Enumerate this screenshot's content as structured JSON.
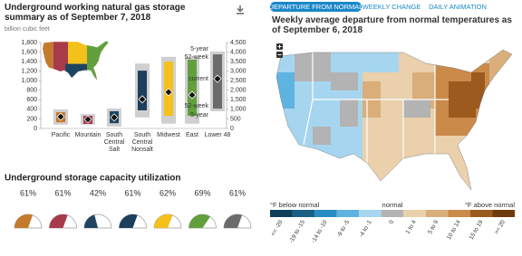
{
  "chart_data": [
    {
      "type": "range",
      "title": "Underground working natural gas storage summary as of September 7, 2018",
      "subtitle": "billion cubic feet",
      "categories": [
        "Pacific",
        "Mountain",
        "South Central Salt",
        "South Central Nonsalt",
        "Midwest",
        "East",
        "Lower 48"
      ],
      "axis": [
        "y",
        "y",
        "y",
        "y",
        "y",
        "y",
        "y2"
      ],
      "series": [
        {
          "name": "5-year",
          "color": "#cfcfcf",
          "low": [
            80,
            80,
            40,
            230,
            100,
            100,
            900
          ],
          "high": [
            400,
            300,
            420,
            1360,
            1500,
            1500,
            4030
          ]
        },
        {
          "name": "52-week",
          "colors": [
            "#c47a2c",
            "#a83a4a",
            "#1f4461",
            "#1d3f5e",
            "#f4c01a",
            "#62a03e",
            "#6b6b6b"
          ],
          "low": [
            130,
            95,
            110,
            380,
            265,
            265,
            1040
          ],
          "high": [
            340,
            265,
            360,
            1210,
            1400,
            1440,
            3880
          ]
        },
        {
          "name": "current",
          "values": [
            245,
            190,
            230,
            610,
            760,
            700,
            2600
          ]
        }
      ],
      "low_labels": [
        "52-week",
        "5-year"
      ],
      "ylim": [
        0,
        1800
      ],
      "yticks": [
        0,
        200,
        400,
        600,
        800,
        {
          "value": 1000,
          "label": "1,000"
        },
        {
          "value": 1200,
          "label": "1,200"
        },
        {
          "value": 1400,
          "label": "1,400"
        },
        {
          "value": 1600,
          "label": "1,600"
        },
        {
          "value": 1800,
          "label": "1,800"
        }
      ],
      "y2lim": [
        0,
        4500
      ],
      "y2ticks": [
        0,
        500,
        {
          "value": 1000,
          "label": "1,000"
        },
        {
          "value": 1500,
          "label": "1,500"
        },
        {
          "value": 2000,
          "label": "2,000"
        },
        {
          "value": 2500,
          "label": "2,500"
        },
        {
          "value": 3000,
          "label": "3,000"
        },
        {
          "value": 3500,
          "label": "3,500"
        },
        {
          "value": 4000,
          "label": "4,000"
        },
        {
          "value": 4500,
          "label": "4,500"
        }
      ]
    },
    {
      "type": "gauge",
      "title": "Underground storage capacity utilization",
      "values": [
        61,
        61,
        42,
        61,
        62,
        69,
        61
      ],
      "value_labels": [
        "61%",
        "61%",
        "42%",
        "61%",
        "62%",
        "69%",
        "61%"
      ],
      "colors": [
        "#c47a2c",
        "#a83a4a",
        "#1f4461",
        "#1d3f5e",
        "#f4c01a",
        "#62a03e",
        "#6b6b6b"
      ]
    }
  ],
  "map_panel": {
    "tabs": [
      "DEPARTURE FROM NORMAL",
      "WEEKLY CHANGE",
      "DAILY ANIMATION"
    ],
    "title": "Weekly average departure from normal temperatures as of September 6, 2018",
    "legend": {
      "below_label": "°F below normal",
      "normal_label": "normal",
      "above_label": "°F above normal",
      "labels": [
        "<= -20",
        "-19 to -15",
        "-14 to -10",
        "-9 to -5",
        "-4 to -1",
        "0",
        "1 to 4",
        "5 to 9",
        "10 to 14",
        "15 to 19",
        ">= 20"
      ],
      "colors": [
        "#0d3f5a",
        "#1a5f86",
        "#2a8cc4",
        "#5fb3e0",
        "#a6d6ef",
        "#b3b3b3",
        "#ead0ab",
        "#d9ae7a",
        "#c98a4a",
        "#9c5a1f",
        "#6e3a0e"
      ]
    }
  }
}
